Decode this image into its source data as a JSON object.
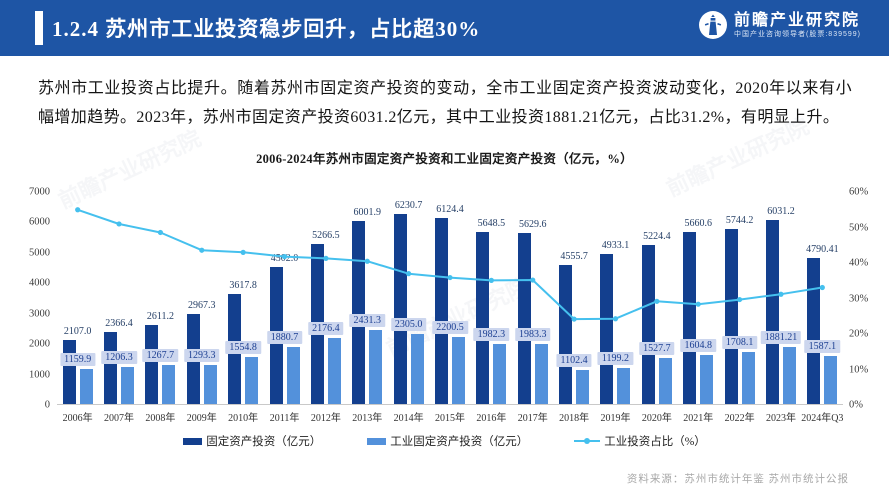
{
  "header": {
    "title": "1.2.4 苏州市工业投资稳步回升，占比超30%",
    "brand": "前瞻产业研究院",
    "tagline": "中国产业咨询领导者(股票:839599)"
  },
  "intro": {
    "text": "苏州市工业投资占比提升。随着苏州市固定资产投资的变动，全市工业固定资产投资波动变化，2020年以来有小幅增加趋势。2023年，苏州市固定资产投资6031.2亿元，其中工业投资1881.21亿元，占比31.2%，有明显上升。"
  },
  "chart_data": {
    "type": "bar",
    "title": "2006-2024年苏州市固定资产投资和工业固定资产投资（亿元，%）",
    "categories": [
      "2006年",
      "2007年",
      "2008年",
      "2009年",
      "2010年",
      "2011年",
      "2012年",
      "2013年",
      "2014年",
      "2015年",
      "2016年",
      "2017年",
      "2018年",
      "2019年",
      "2020年",
      "2021年",
      "2022年",
      "2023年",
      "2024年Q3"
    ],
    "series": [
      {
        "name": "固定资产投资（亿元）",
        "type": "bar",
        "color": "#133f8e",
        "values": [
          2107.0,
          2366.4,
          2611.2,
          2967.3,
          3617.8,
          4502.0,
          5266.5,
          6001.9,
          6230.7,
          6124.4,
          5648.5,
          5629.6,
          4555.7,
          4933.1,
          5224.4,
          5660.6,
          5744.2,
          6031.2,
          4790.41
        ],
        "labels": [
          "2107.0",
          "2366.4",
          "2611.2",
          "2967.3",
          "3617.8",
          "4502.0",
          "5266.5",
          "6001.9",
          "6230.7",
          "6124.4",
          "5648.5",
          "5629.6",
          "4555.7",
          "4933.1",
          "5224.4",
          "5660.6",
          "5744.2",
          "6031.2",
          "4790.41"
        ]
      },
      {
        "name": "工业固定资产投资（亿元）",
        "type": "bar",
        "color": "#5391db",
        "values": [
          1159.9,
          1206.3,
          1267.7,
          1293.3,
          1554.8,
          1880.7,
          2176.4,
          2431.3,
          2305.0,
          2200.5,
          1982.3,
          1983.3,
          1102.4,
          1199.2,
          1527.7,
          1604.8,
          1708.1,
          1881.21,
          1587.1
        ],
        "labels": [
          "1159.9",
          "1206.3",
          "1267.7",
          "1293.3",
          "1554.8",
          "1880.7",
          "2176.4",
          "2431.3",
          "2305.0",
          "2200.5",
          "1982.3",
          "1983.3",
          "1102.4",
          "1199.2",
          "1527.7",
          "1604.8",
          "1708.1",
          "1881.21",
          "1587.1"
        ]
      },
      {
        "name": "工业投资占比（%）",
        "type": "line",
        "color": "#45c0ee",
        "values": [
          55.0,
          51.0,
          48.6,
          43.6,
          43.0,
          41.8,
          41.3,
          40.5,
          37.0,
          35.9,
          35.1,
          35.2,
          24.2,
          24.3,
          29.2,
          28.4,
          29.7,
          31.2,
          33.1
        ]
      }
    ],
    "left_axis": {
      "min": 0,
      "max": 7000,
      "step": 1000,
      "ticks": [
        "7000",
        "6000",
        "5000",
        "4000",
        "3000",
        "2000",
        "1000",
        "0"
      ]
    },
    "right_axis": {
      "min": 0,
      "max": 60,
      "step": 10,
      "ticks": [
        "60%",
        "50%",
        "40%",
        "30%",
        "20%",
        "10%",
        "0%"
      ]
    },
    "grid": false,
    "legend_position": "bottom"
  },
  "footer": {
    "source": "资料来源：苏州市统计年鉴 苏州市统计公报"
  },
  "watermark": {
    "text": "前瞻产业研究院"
  },
  "theme": {
    "header_bg": "#1e55a5",
    "bar_dark": "#133f8e",
    "bar_light": "#5391db",
    "line": "#45c0ee",
    "label_box_bg": "#ccd6ee"
  }
}
